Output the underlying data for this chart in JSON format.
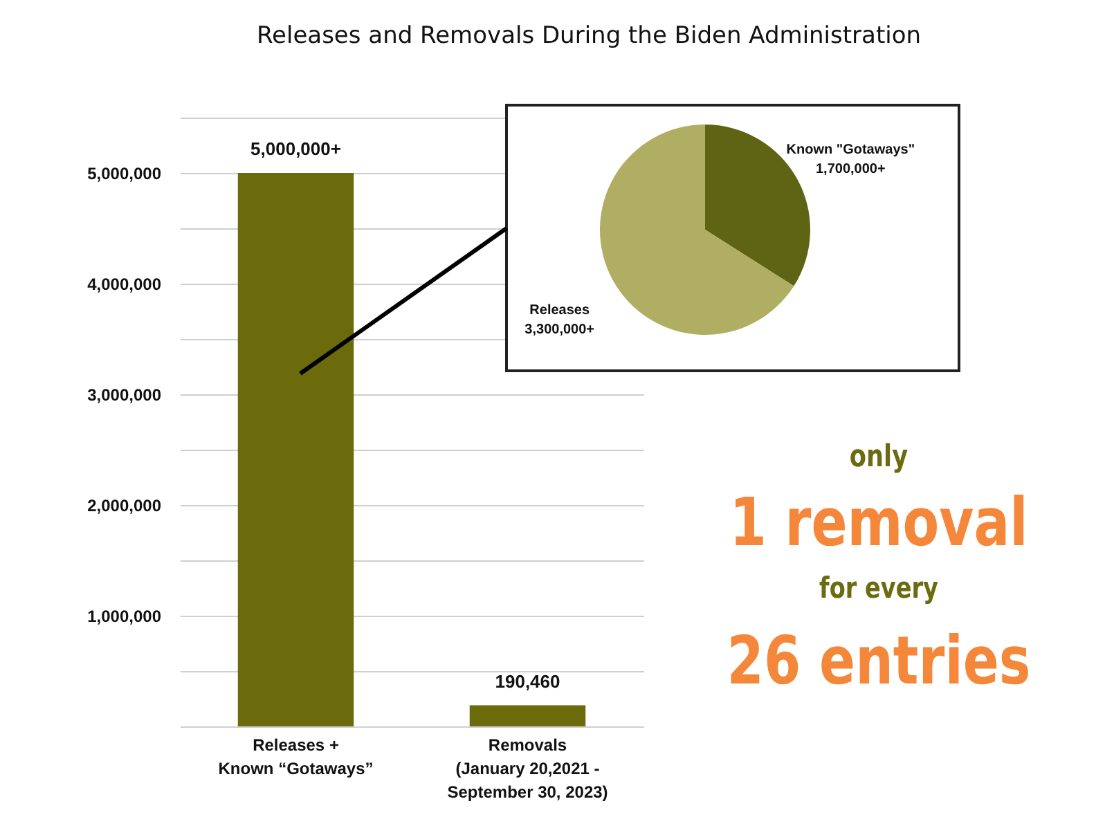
{
  "chart_data": [
    {
      "type": "bar",
      "title": "Releases and Removals During the Biden Administration",
      "categories": [
        "Releases +\nKnown “Gotaways”",
        "Removals\n(January 20,2021 -\nSeptember 30, 2023)"
      ],
      "values": [
        5000000,
        190460
      ],
      "color": "#6b6b0c",
      "value_labels": [
        "5,000,000+",
        "190,460"
      ],
      "ylim": [
        0,
        5500000
      ],
      "yticks": [
        {
          "value": 0,
          "label": null
        },
        {
          "value": 500000,
          "label": null
        },
        {
          "value": 1000000,
          "label": "1,000,000"
        },
        {
          "value": 1500000,
          "label": null
        },
        {
          "value": 2000000,
          "label": "2,000,000"
        },
        {
          "value": 2500000,
          "label": null
        },
        {
          "value": 3000000,
          "label": "3,000,000"
        },
        {
          "value": 3500000,
          "label": null
        },
        {
          "value": 4000000,
          "label": "4,000,000"
        },
        {
          "value": 4500000,
          "label": null
        },
        {
          "value": 5000000,
          "label": "5,000,000"
        },
        {
          "value": 5500000,
          "label": null
        }
      ],
      "grid": "y",
      "annotations": [
        "only",
        "1 removal",
        "for every",
        "26 entries"
      ]
    },
    {
      "type": "pie",
      "categories": [
        "Known \"Gotaways\"",
        "Releases"
      ],
      "values": [
        1700000,
        3300000
      ],
      "colors": [
        "#5f6414",
        "#b0ae62"
      ],
      "value_labels": [
        "1,700,000+",
        "3,300,000+"
      ]
    }
  ]
}
